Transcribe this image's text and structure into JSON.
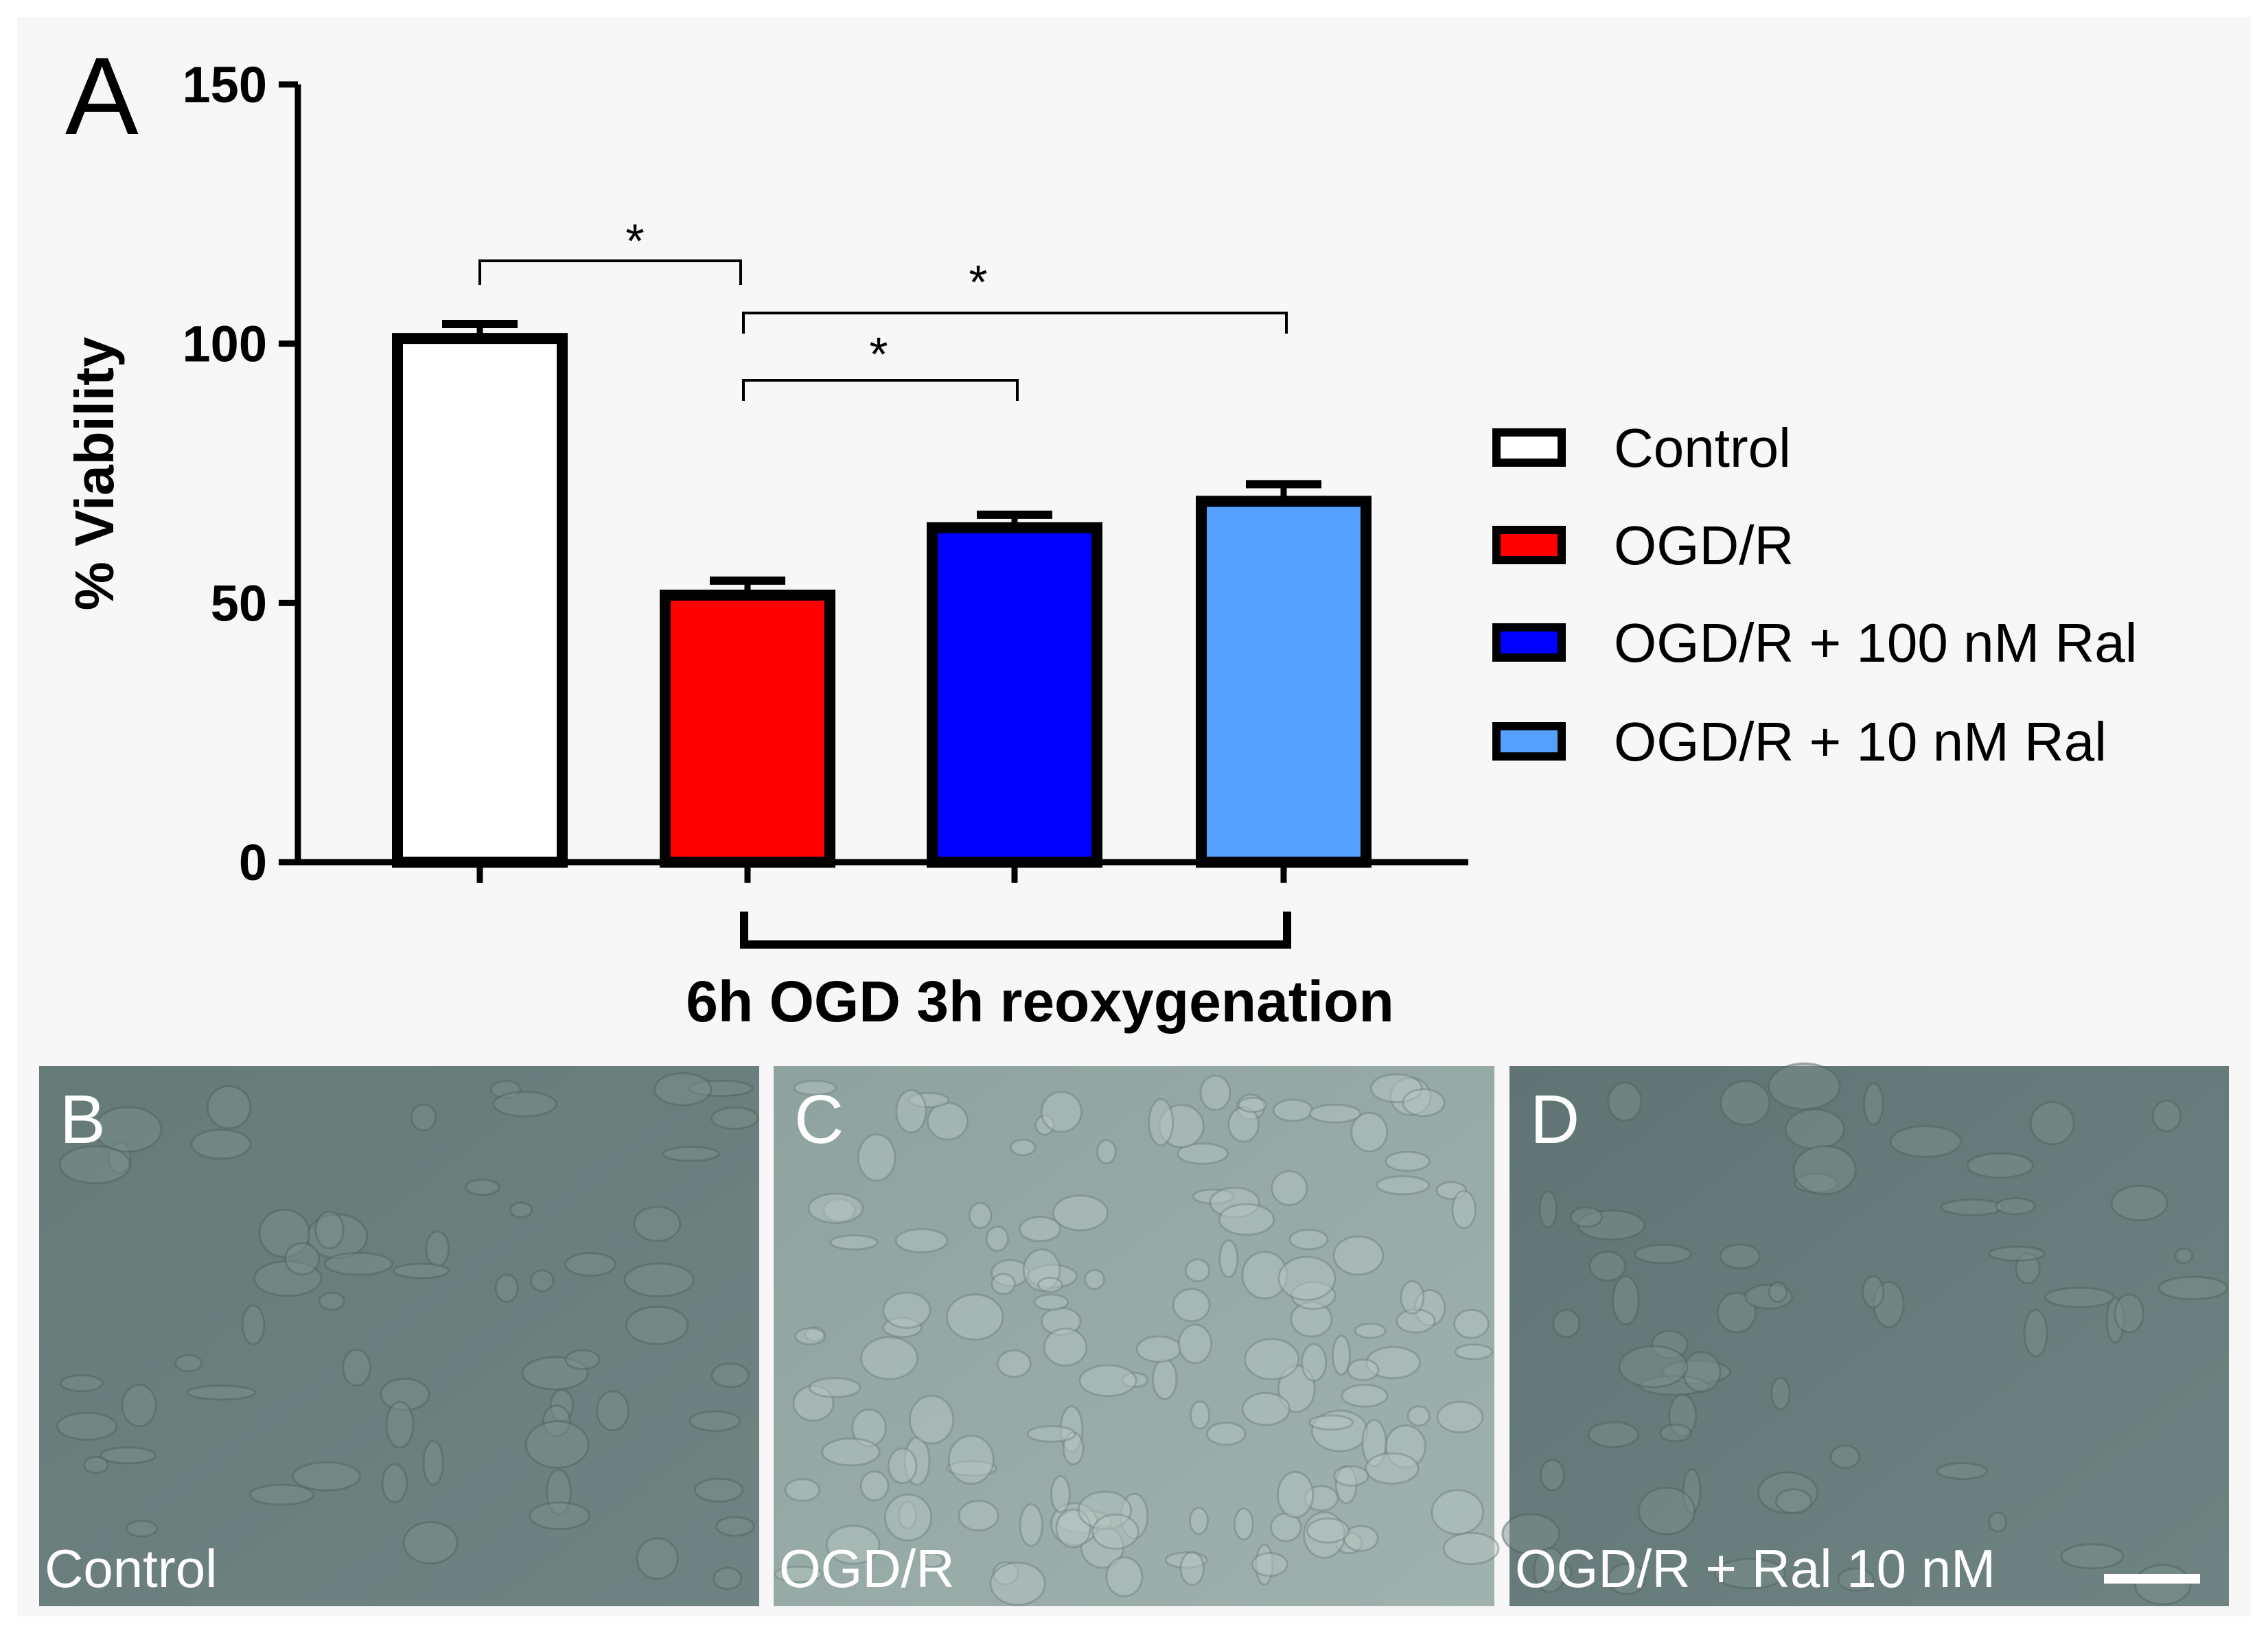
{
  "panel_a_label": "A",
  "chart_data": {
    "type": "bar",
    "categories": [
      "Control",
      "OGD/R",
      "OGD/R + 100 nM Ral",
      "OGD/R + 10 nM  Ral"
    ],
    "values": [
      101,
      51.5,
      64.5,
      69.6
    ],
    "error": [
      2.8,
      2.8,
      2.5,
      3.3
    ],
    "colors": [
      "#ffffff",
      "#ff0000",
      "#0000ff",
      "#559fff"
    ],
    "ylabel": "% Viability",
    "xlabel": "6h OGD 3h reoxygenation",
    "ylim": [
      0,
      150
    ],
    "yticks": [
      "0",
      "50",
      "100",
      "150"
    ],
    "grid": false,
    "legend_position": "right",
    "legend": [
      "Control",
      "OGD/R",
      "OGD/R + 100 nM Ral",
      "OGD/R + 10 nM  Ral"
    ],
    "significance": [
      {
        "from": 0,
        "to": 1,
        "label": "*"
      },
      {
        "from": 1,
        "to": 3,
        "label": "*"
      },
      {
        "from": 1,
        "to": 2,
        "label": "*"
      }
    ]
  },
  "micrographs": [
    {
      "letter": "B",
      "caption": "Control",
      "tone": "#667a78"
    },
    {
      "letter": "C",
      "caption": "OGD/R",
      "tone": "#8ea29f"
    },
    {
      "letter": "D",
      "caption": "OGD/R + Ral 10 nM",
      "tone": "#5f7473"
    }
  ]
}
